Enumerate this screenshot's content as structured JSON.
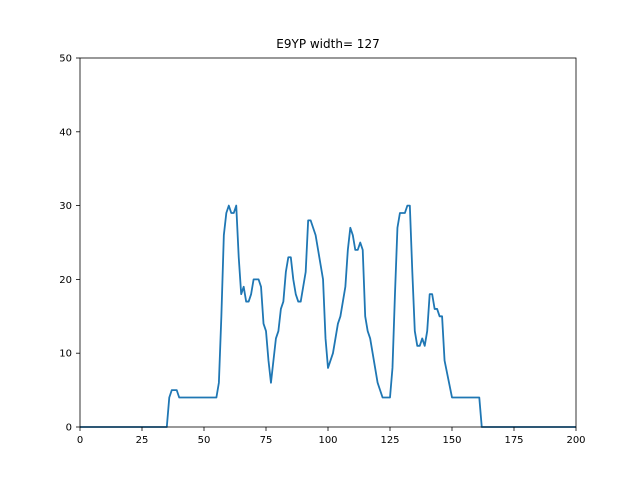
{
  "chart_data": {
    "type": "line",
    "title": "E9YP width= 127",
    "xlabel": "",
    "ylabel": "",
    "xlim": [
      0,
      200
    ],
    "ylim": [
      0,
      50
    ],
    "grid": false,
    "x_ticks": [
      0,
      25,
      50,
      75,
      100,
      125,
      150,
      175,
      200
    ],
    "y_ticks": [
      0,
      10,
      20,
      30,
      40,
      50
    ],
    "colors": {
      "line": "#1f77b4",
      "axes": "#000000",
      "background": "#ffffff"
    },
    "series": [
      {
        "x": [
          0,
          35,
          36,
          37,
          38,
          39,
          40,
          41,
          45,
          50,
          55,
          56,
          57,
          58,
          59,
          60,
          61,
          62,
          63,
          64,
          65,
          66,
          67,
          68,
          69,
          70,
          71,
          72,
          73,
          74,
          75,
          76,
          77,
          78,
          79,
          80,
          81,
          82,
          83,
          84,
          85,
          86,
          87,
          88,
          89,
          90,
          91,
          92,
          93,
          94,
          95,
          96,
          97,
          98,
          99,
          100,
          101,
          102,
          103,
          104,
          105,
          106,
          107,
          108,
          109,
          110,
          111,
          112,
          113,
          114,
          115,
          116,
          117,
          118,
          119,
          120,
          121,
          122,
          123,
          124,
          125,
          126,
          127,
          128,
          129,
          130,
          131,
          132,
          133,
          134,
          135,
          136,
          137,
          138,
          139,
          140,
          141,
          142,
          143,
          144,
          145,
          146,
          147,
          150,
          155,
          160,
          161,
          162,
          165,
          175,
          200
        ],
        "y": [
          0,
          0,
          4,
          5,
          5,
          5,
          4,
          4,
          4,
          4,
          4,
          6,
          15,
          26,
          29,
          30,
          29,
          29,
          30,
          23,
          18,
          19,
          17,
          17,
          18,
          20,
          20,
          20,
          19,
          14,
          13,
          9,
          6,
          9,
          12,
          13,
          16,
          17,
          21,
          23,
          23,
          20,
          18,
          17,
          17,
          19,
          21,
          28,
          28,
          27,
          26,
          24,
          22,
          20,
          12,
          8,
          9,
          10,
          12,
          14,
          15,
          17,
          19,
          24,
          27,
          26,
          24,
          24,
          25,
          24,
          15,
          13,
          12,
          10,
          8,
          6,
          5,
          4,
          4,
          4,
          4,
          8,
          18,
          27,
          29,
          29,
          29,
          30,
          30,
          21,
          13,
          11,
          11,
          12,
          11,
          13,
          18,
          18,
          16,
          16,
          15,
          15,
          9,
          4,
          4,
          4,
          4,
          0,
          0,
          0,
          0
        ]
      }
    ]
  }
}
